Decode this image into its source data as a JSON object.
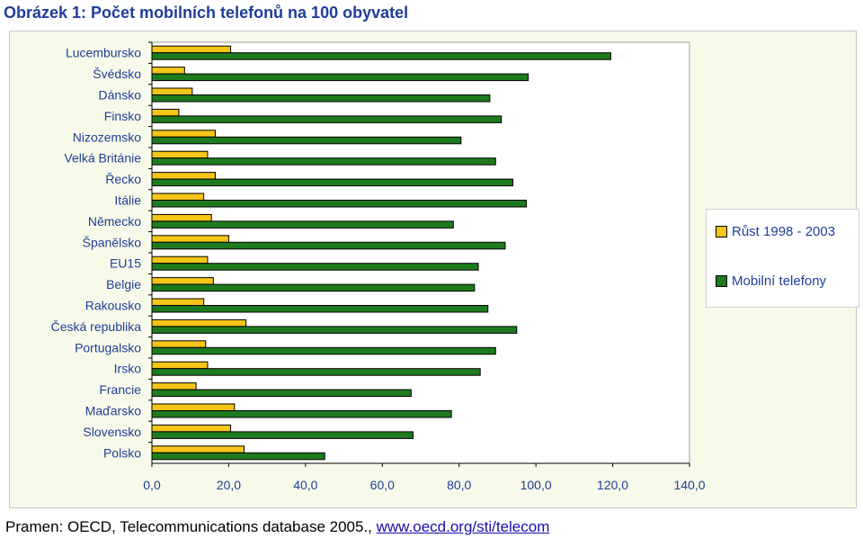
{
  "title": "Obrázek 1: Počet mobilních telefonů na 100 obyvatel",
  "source": {
    "text": "Pramen: OECD, Telecommunications database 2005., ",
    "link": "www.oecd.org/sti/telecom"
  },
  "colors": {
    "growth": "#f5c518",
    "phones": "#1e7a1e",
    "plot_bg": "#ffffff",
    "chart_bg": "#f7fae9",
    "label": "#1f3e99"
  },
  "chart_data": {
    "type": "bar",
    "orientation": "horizontal",
    "categories": [
      "Lucembursko",
      "Švédsko",
      "Dánsko",
      "Finsko",
      "Nizozemsko",
      "Velká Británie",
      "Řecko",
      "Itálie",
      "Německo",
      "Španělsko",
      "EU15",
      "Belgie",
      "Rakousko",
      "Česká republika",
      "Portugalsko",
      "Irsko",
      "Francie",
      "Maďarsko",
      "Slovensko",
      "Polsko"
    ],
    "series": [
      {
        "name": "Růst 1998 - 2003",
        "color": "#f5c518",
        "values": [
          20.5,
          8.5,
          10.5,
          7.0,
          16.5,
          14.5,
          16.5,
          13.5,
          15.5,
          20.0,
          14.5,
          16.0,
          13.5,
          24.5,
          14.0,
          14.5,
          11.5,
          21.5,
          20.5,
          24.0
        ]
      },
      {
        "name": "Mobilní telefony",
        "color": "#1e7a1e",
        "values": [
          119.5,
          98.0,
          88.0,
          91.0,
          80.5,
          89.5,
          94.0,
          97.5,
          78.5,
          92.0,
          85.0,
          84.0,
          87.5,
          95.0,
          89.5,
          85.5,
          67.5,
          78.0,
          68.0,
          45.0
        ]
      }
    ],
    "xaxis": {
      "ticks": [
        "0,0",
        "20,0",
        "40,0",
        "60,0",
        "80,0",
        "100,0",
        "120,0",
        "140,0"
      ]
    },
    "xlim": [
      0,
      140
    ],
    "grid": false,
    "legend": "right"
  }
}
